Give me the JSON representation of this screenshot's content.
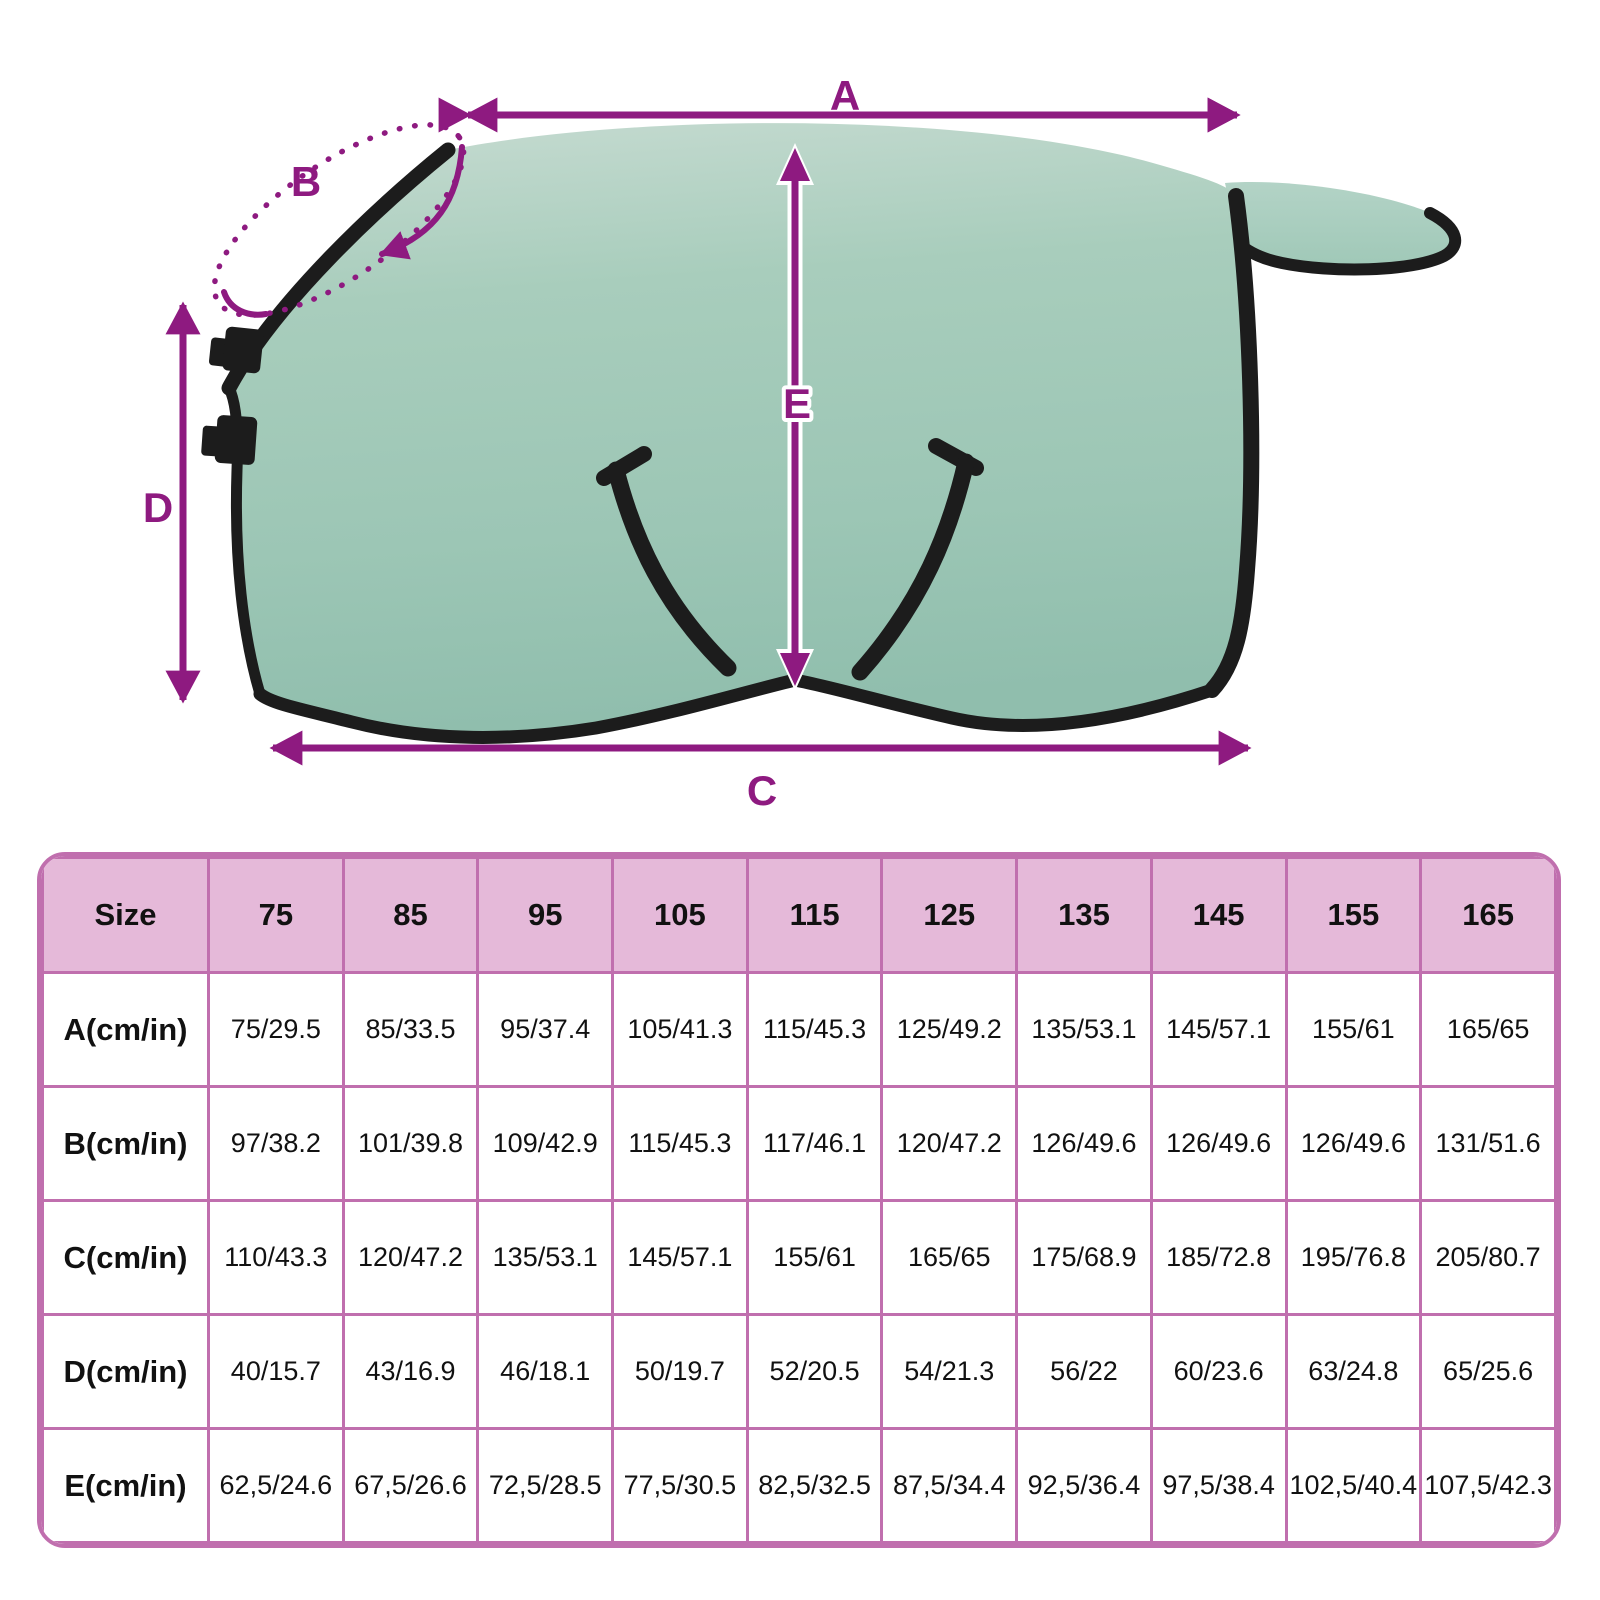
{
  "diagram": {
    "labels": {
      "a": "A",
      "b": "B",
      "c": "C",
      "d": "D",
      "e": "E"
    },
    "colors": {
      "arrow": "#8e1a80",
      "blanket_green": "#9cc6b5",
      "blanket_green_light": "#c6dbd1",
      "binding_black": "#1c1c1c"
    }
  },
  "table": {
    "colors": {
      "border": "#c06fae",
      "header_bg": "#e5b9d9",
      "cell_bg": "#ffffff"
    },
    "header": [
      "Size",
      "75",
      "85",
      "95",
      "105",
      "115",
      "125",
      "135",
      "145",
      "155",
      "165"
    ],
    "rows": [
      {
        "label": "A(cm/in)",
        "values": [
          "75/29.5",
          "85/33.5",
          "95/37.4",
          "105/41.3",
          "115/45.3",
          "125/49.2",
          "135/53.1",
          "145/57.1",
          "155/61",
          "165/65"
        ]
      },
      {
        "label": "B(cm/in)",
        "values": [
          "97/38.2",
          "101/39.8",
          "109/42.9",
          "115/45.3",
          "117/46.1",
          "120/47.2",
          "126/49.6",
          "126/49.6",
          "126/49.6",
          "131/51.6"
        ]
      },
      {
        "label": "C(cm/in)",
        "values": [
          "110/43.3",
          "120/47.2",
          "135/53.1",
          "145/57.1",
          "155/61",
          "165/65",
          "175/68.9",
          "185/72.8",
          "195/76.8",
          "205/80.7"
        ]
      },
      {
        "label": "D(cm/in)",
        "values": [
          "40/15.7",
          "43/16.9",
          "46/18.1",
          "50/19.7",
          "52/20.5",
          "54/21.3",
          "56/22",
          "60/23.6",
          "63/24.8",
          "65/25.6"
        ]
      },
      {
        "label": "E(cm/in)",
        "values": [
          "62,5/24.6",
          "67,5/26.6",
          "72,5/28.5",
          "77,5/30.5",
          "82,5/32.5",
          "87,5/34.4",
          "92,5/36.4",
          "97,5/38.4",
          "102,5/40.4",
          "107,5/42.3"
        ]
      }
    ]
  },
  "chart_data": {
    "type": "table",
    "title": "",
    "columns": [
      "Size",
      "75",
      "85",
      "95",
      "105",
      "115",
      "125",
      "135",
      "145",
      "155",
      "165"
    ],
    "rows": [
      [
        "A(cm/in)",
        "75/29.5",
        "85/33.5",
        "95/37.4",
        "105/41.3",
        "115/45.3",
        "125/49.2",
        "135/53.1",
        "145/57.1",
        "155/61",
        "165/65"
      ],
      [
        "B(cm/in)",
        "97/38.2",
        "101/39.8",
        "109/42.9",
        "115/45.3",
        "117/46.1",
        "120/47.2",
        "126/49.6",
        "126/49.6",
        "126/49.6",
        "131/51.6"
      ],
      [
        "C(cm/in)",
        "110/43.3",
        "120/47.2",
        "135/53.1",
        "145/57.1",
        "155/61",
        "165/65",
        "175/68.9",
        "185/72.8",
        "195/76.8",
        "205/80.7"
      ],
      [
        "D(cm/in)",
        "40/15.7",
        "43/16.9",
        "46/18.1",
        "50/19.7",
        "52/20.5",
        "54/21.3",
        "56/22",
        "60/23.6",
        "63/24.8",
        "65/25.6"
      ],
      [
        "E(cm/in)",
        "62,5/24.6",
        "67,5/26.6",
        "72,5/28.5",
        "77,5/30.5",
        "82,5/32.5",
        "87,5/34.4",
        "92,5/36.4",
        "97,5/38.4",
        "102,5/40.4",
        "107,5/42.3"
      ]
    ]
  }
}
